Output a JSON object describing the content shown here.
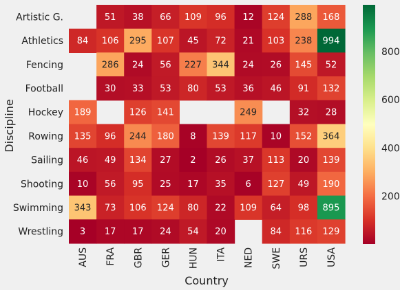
{
  "chart_data": {
    "type": "heatmap",
    "title": "",
    "xlabel": "Country",
    "ylabel": "Discipline",
    "x_categories": [
      "AUS",
      "FRA",
      "GBR",
      "GER",
      "HUN",
      "ITA",
      "NED",
      "SWE",
      "URS",
      "USA"
    ],
    "y_categories": [
      "Artistic G.",
      "Athletics",
      "Fencing",
      "Football",
      "Hockey",
      "Rowing",
      "Sailing",
      "Shooting",
      "Swimming",
      "Wrestling"
    ],
    "values": [
      [
        null,
        51,
        38,
        66,
        109,
        96,
        12,
        124,
        288,
        168
      ],
      [
        84,
        106,
        295,
        107,
        45,
        72,
        21,
        103,
        238,
        994
      ],
      [
        null,
        286,
        24,
        56,
        227,
        344,
        24,
        26,
        145,
        52
      ],
      [
        null,
        30,
        33,
        53,
        80,
        53,
        36,
        46,
        91,
        132
      ],
      [
        189,
        null,
        126,
        141,
        null,
        null,
        249,
        null,
        32,
        28
      ],
      [
        135,
        96,
        244,
        180,
        8,
        139,
        117,
        10,
        152,
        364
      ],
      [
        46,
        49,
        134,
        27,
        2,
        26,
        37,
        113,
        20,
        139
      ],
      [
        10,
        56,
        95,
        25,
        17,
        35,
        6,
        127,
        49,
        190
      ],
      [
        343,
        73,
        106,
        124,
        80,
        22,
        109,
        64,
        98,
        895
      ],
      [
        3,
        17,
        17,
        24,
        54,
        20,
        null,
        84,
        116,
        129
      ]
    ],
    "color_scale": {
      "name": "RdYlGn",
      "vmin": 2,
      "vmax": 994,
      "ticks": [
        200,
        400,
        600,
        800
      ]
    },
    "annotations": "cell values shown",
    "grid": false,
    "legend": "colorbar-right"
  }
}
